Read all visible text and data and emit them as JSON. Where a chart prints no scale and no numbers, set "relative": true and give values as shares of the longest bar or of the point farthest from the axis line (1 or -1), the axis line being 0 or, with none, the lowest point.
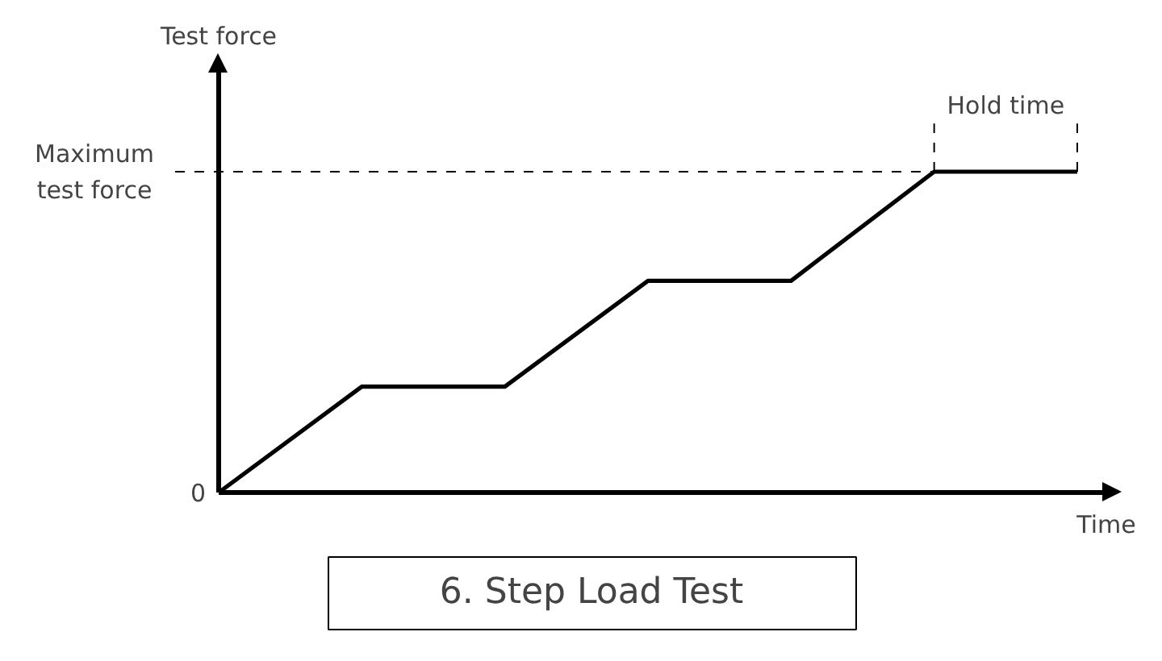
{
  "chart_data": {
    "type": "line",
    "title": "6. Step Load Test",
    "xlabel": "Time",
    "ylabel": "Test force",
    "relative": true,
    "categories": [
      null,
      null,
      null,
      null,
      null,
      null,
      null
    ],
    "series": [
      {
        "color": "#000000",
        "values": [
          0,
          0.33,
          0.33,
          0.66,
          0.66,
          1,
          1
        ]
      }
    ],
    "ref_lines": [
      {
        "axis": "y",
        "value": 1,
        "label": "Maximum\ntest force",
        "line_style": "dashed"
      }
    ],
    "annotations": [
      "0",
      "Hold time"
    ],
    "grid": false,
    "line_style": "solid",
    "marker": "none"
  }
}
